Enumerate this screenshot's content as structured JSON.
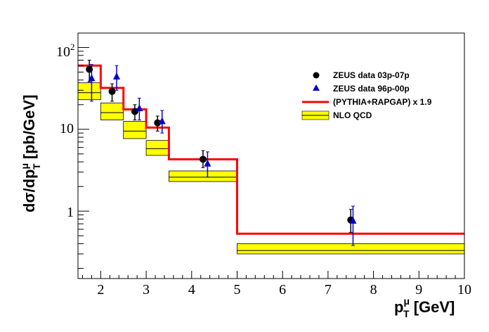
{
  "chart_data": {
    "type": "scatter",
    "xlabel": {
      "main": "p",
      "sup": "μ",
      "sub": "T",
      "suffix": " [GeV]"
    },
    "ylabel": {
      "main": "dσ/dp",
      "sup": "μ",
      "sub": "T",
      "suffix": " [pb/GeV]"
    },
    "xlim": [
      1.5,
      10
    ],
    "ylim": [
      0.15,
      150
    ],
    "yscale": "log",
    "x_ticks": [
      "2",
      "3",
      "4",
      "5",
      "6",
      "7",
      "8",
      "9",
      "10"
    ],
    "y_ticks": {
      "one": "1",
      "ten": "10",
      "hundred_base": "10",
      "hundred_exp": "2"
    },
    "legend_position": "top-right",
    "bins": [
      {
        "lo": 1.5,
        "hi": 2.0
      },
      {
        "lo": 2.0,
        "hi": 2.5
      },
      {
        "lo": 2.5,
        "hi": 3.0
      },
      {
        "lo": 3.0,
        "hi": 3.5
      },
      {
        "lo": 3.5,
        "hi": 5.0
      },
      {
        "lo": 5.0,
        "hi": 10.0
      }
    ],
    "series": [
      {
        "name": "ZEUS data 03p-07p",
        "marker": "circle",
        "color": "#000000",
        "points": [
          {
            "x": 1.75,
            "y": 54,
            "ylo": 38,
            "yhi": 70
          },
          {
            "x": 2.25,
            "y": 29,
            "ylo": 22,
            "yhi": 36
          },
          {
            "x": 2.75,
            "y": 16.5,
            "ylo": 13,
            "yhi": 20
          },
          {
            "x": 3.25,
            "y": 12,
            "ylo": 9.5,
            "yhi": 14.5
          },
          {
            "x": 4.25,
            "y": 4.3,
            "ylo": 3.4,
            "yhi": 5.5
          },
          {
            "x": 7.5,
            "y": 0.78,
            "ylo": 0.55,
            "yhi": 1.05
          }
        ]
      },
      {
        "name": "ZEUS data 96p-00p",
        "marker": "triangle",
        "color": "#0000cc",
        "points": [
          {
            "x": 1.8,
            "y": 42,
            "ylo": 22,
            "yhi": 62
          },
          {
            "x": 2.35,
            "y": 44,
            "ylo": 30,
            "yhi": 60
          },
          {
            "x": 2.85,
            "y": 18,
            "ylo": 13,
            "yhi": 24
          },
          {
            "x": 3.35,
            "y": 12.5,
            "ylo": 9,
            "yhi": 17
          },
          {
            "x": 4.35,
            "y": 3.8,
            "ylo": 2.6,
            "yhi": 5.3
          },
          {
            "x": 7.55,
            "y": 0.76,
            "ylo": 0.38,
            "yhi": 1.15
          }
        ]
      },
      {
        "name": "(PYTHIA+RAPGAP) x 1.9",
        "style": "histogram",
        "color": "#ff0000",
        "values": [
          60,
          32,
          17.5,
          10.5,
          4.3,
          0.53
        ]
      },
      {
        "name": "NLO QCD",
        "style": "band",
        "fill": "#ffff00",
        "line": "#000000",
        "central": [
          28,
          16,
          9.5,
          5.8,
          2.6,
          0.33
        ],
        "lower": [
          23,
          13,
          7.7,
          4.8,
          2.3,
          0.3
        ],
        "upper": [
          37,
          21,
          12.5,
          7.3,
          3.1,
          0.4
        ]
      }
    ]
  }
}
